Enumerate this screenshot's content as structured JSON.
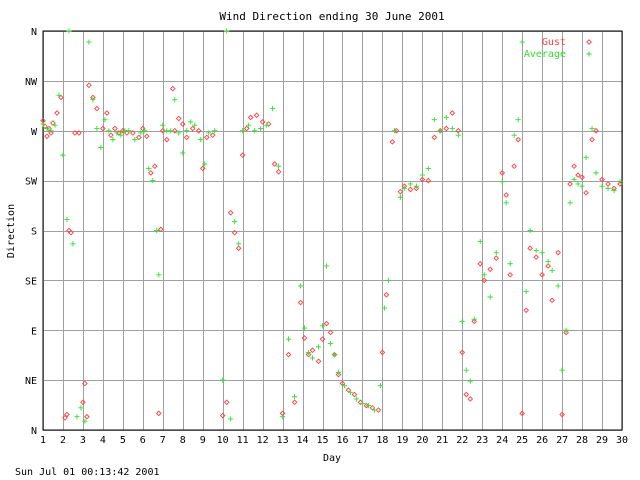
{
  "chart_data": {
    "type": "scatter",
    "title": "Wind Direction ending 30 June 2001",
    "xlabel": "Day",
    "ylabel": "Direction",
    "footer": "Sun Jul 01 00:13:42 2001",
    "x_range": [
      1,
      30
    ],
    "y_range": [
      0,
      360
    ],
    "x_ticks": [
      "1",
      "2",
      "3",
      "4",
      "5",
      "6",
      "7",
      "8",
      "9",
      "10",
      "11",
      "12",
      "13",
      "14",
      "15",
      "16",
      "17",
      "18",
      "19",
      "20",
      "21",
      "22",
      "23",
      "24",
      "25",
      "26",
      "27",
      "28",
      "29",
      "30"
    ],
    "y_ticks": [
      {
        "label": "N",
        "value": 0
      },
      {
        "label": "NE",
        "value": 45
      },
      {
        "label": "E",
        "value": 90
      },
      {
        "label": "SE",
        "value": 135
      },
      {
        "label": "S",
        "value": 180
      },
      {
        "label": "SW",
        "value": 225
      },
      {
        "label": "W",
        "value": 270
      },
      {
        "label": "NW",
        "value": 315
      },
      {
        "label": "N",
        "value": 360
      }
    ],
    "grid": true,
    "legend_position": "top-right",
    "series": [
      {
        "name": "Gust",
        "marker": "diamond",
        "color": "#ff4040",
        "points": [
          [
            1.0,
            279
          ],
          [
            1.1,
            274
          ],
          [
            1.2,
            265
          ],
          [
            1.3,
            272
          ],
          [
            1.4,
            268
          ],
          [
            1.5,
            277
          ],
          [
            1.7,
            286
          ],
          [
            1.9,
            300
          ],
          [
            2.1,
            11
          ],
          [
            2.2,
            14
          ],
          [
            2.3,
            180
          ],
          [
            2.4,
            178
          ],
          [
            2.6,
            268
          ],
          [
            2.8,
            268
          ],
          [
            3.0,
            25
          ],
          [
            3.1,
            42
          ],
          [
            3.2,
            12
          ],
          [
            3.3,
            311
          ],
          [
            3.5,
            300
          ],
          [
            3.7,
            290
          ],
          [
            4.0,
            272
          ],
          [
            4.2,
            286
          ],
          [
            4.4,
            266
          ],
          [
            4.6,
            272
          ],
          [
            4.8,
            268
          ],
          [
            5.0,
            270
          ],
          [
            5.2,
            268
          ],
          [
            5.5,
            268
          ],
          [
            5.8,
            264
          ],
          [
            6.0,
            272
          ],
          [
            6.2,
            265
          ],
          [
            6.4,
            232
          ],
          [
            6.6,
            238
          ],
          [
            6.8,
            15
          ],
          [
            6.9,
            181
          ],
          [
            7.0,
            270
          ],
          [
            7.2,
            262
          ],
          [
            7.5,
            308
          ],
          [
            7.6,
            270
          ],
          [
            7.8,
            281
          ],
          [
            8.0,
            276
          ],
          [
            8.2,
            264
          ],
          [
            8.5,
            272
          ],
          [
            8.8,
            270
          ],
          [
            9.0,
            236
          ],
          [
            9.2,
            264
          ],
          [
            9.5,
            266
          ],
          [
            10.0,
            13
          ],
          [
            10.2,
            25
          ],
          [
            10.4,
            196
          ],
          [
            10.6,
            178
          ],
          [
            10.8,
            164
          ],
          [
            11.0,
            248
          ],
          [
            11.2,
            272
          ],
          [
            11.4,
            282
          ],
          [
            11.7,
            284
          ],
          [
            12.0,
            278
          ],
          [
            12.3,
            276
          ],
          [
            12.6,
            240
          ],
          [
            12.8,
            233
          ],
          [
            13.0,
            15
          ],
          [
            13.3,
            68
          ],
          [
            13.6,
            25
          ],
          [
            13.9,
            115
          ],
          [
            14.1,
            83
          ],
          [
            14.3,
            68
          ],
          [
            14.5,
            72
          ],
          [
            14.8,
            62
          ],
          [
            15.0,
            82
          ],
          [
            15.2,
            96
          ],
          [
            15.4,
            88
          ],
          [
            15.6,
            68
          ],
          [
            15.8,
            50
          ],
          [
            16.0,
            42
          ],
          [
            16.3,
            36
          ],
          [
            16.6,
            32
          ],
          [
            16.9,
            25
          ],
          [
            17.2,
            22
          ],
          [
            17.5,
            20
          ],
          [
            17.8,
            18
          ],
          [
            18.0,
            70
          ],
          [
            18.2,
            122
          ],
          [
            18.5,
            260
          ],
          [
            18.7,
            270
          ],
          [
            18.9,
            215
          ],
          [
            19.1,
            220
          ],
          [
            19.4,
            217
          ],
          [
            19.7,
            218
          ],
          [
            20.0,
            226
          ],
          [
            20.3,
            225
          ],
          [
            20.6,
            264
          ],
          [
            20.9,
            270
          ],
          [
            21.2,
            272
          ],
          [
            21.5,
            286
          ],
          [
            21.8,
            270
          ],
          [
            22.0,
            70
          ],
          [
            22.2,
            32
          ],
          [
            22.4,
            28
          ],
          [
            22.6,
            98
          ],
          [
            22.9,
            150
          ],
          [
            23.1,
            135
          ],
          [
            23.4,
            145
          ],
          [
            23.7,
            155
          ],
          [
            24.0,
            232
          ],
          [
            24.2,
            212
          ],
          [
            24.4,
            140
          ],
          [
            24.6,
            238
          ],
          [
            24.8,
            262
          ],
          [
            25.0,
            15
          ],
          [
            25.2,
            108
          ],
          [
            25.4,
            164
          ],
          [
            25.7,
            156
          ],
          [
            26.0,
            140
          ],
          [
            26.3,
            148
          ],
          [
            26.5,
            117
          ],
          [
            26.8,
            160
          ],
          [
            27.0,
            14
          ],
          [
            27.2,
            88
          ],
          [
            27.4,
            222
          ],
          [
            27.6,
            238
          ],
          [
            27.8,
            230
          ],
          [
            28.0,
            228
          ],
          [
            28.2,
            214
          ],
          [
            28.5,
            262
          ],
          [
            28.7,
            270
          ],
          [
            29.0,
            226
          ],
          [
            29.3,
            222
          ],
          [
            29.6,
            218
          ],
          [
            29.9,
            222
          ]
        ]
      },
      {
        "name": "Average",
        "marker": "plus",
        "color": "#30e030",
        "points": [
          [
            1.0,
            276
          ],
          [
            1.2,
            272
          ],
          [
            1.4,
            270
          ],
          [
            1.6,
            275
          ],
          [
            1.8,
            302
          ],
          [
            2.0,
            248
          ],
          [
            2.2,
            190
          ],
          [
            2.3,
            360
          ],
          [
            2.5,
            168
          ],
          [
            2.7,
            12
          ],
          [
            2.9,
            20
          ],
          [
            3.1,
            8
          ],
          [
            3.3,
            350
          ],
          [
            3.5,
            298
          ],
          [
            3.7,
            272
          ],
          [
            3.9,
            255
          ],
          [
            4.1,
            280
          ],
          [
            4.3,
            270
          ],
          [
            4.5,
            262
          ],
          [
            4.7,
            268
          ],
          [
            4.9,
            266
          ],
          [
            5.1,
            270
          ],
          [
            5.3,
            270
          ],
          [
            5.6,
            262
          ],
          [
            5.9,
            268
          ],
          [
            6.1,
            270
          ],
          [
            6.3,
            236
          ],
          [
            6.5,
            225
          ],
          [
            6.7,
            180
          ],
          [
            6.8,
            140
          ],
          [
            7.0,
            275
          ],
          [
            7.2,
            270
          ],
          [
            7.4,
            270
          ],
          [
            7.6,
            298
          ],
          [
            7.8,
            268
          ],
          [
            8.0,
            250
          ],
          [
            8.2,
            270
          ],
          [
            8.4,
            278
          ],
          [
            8.6,
            275
          ],
          [
            8.9,
            262
          ],
          [
            9.1,
            240
          ],
          [
            9.3,
            268
          ],
          [
            9.6,
            270
          ],
          [
            10.0,
            45
          ],
          [
            10.2,
            360
          ],
          [
            10.4,
            10
          ],
          [
            10.6,
            188
          ],
          [
            10.8,
            168
          ],
          [
            11.0,
            270
          ],
          [
            11.3,
            275
          ],
          [
            11.6,
            270
          ],
          [
            11.9,
            272
          ],
          [
            12.2,
            275
          ],
          [
            12.5,
            290
          ],
          [
            12.8,
            238
          ],
          [
            13.0,
            12
          ],
          [
            13.3,
            82
          ],
          [
            13.6,
            30
          ],
          [
            13.9,
            130
          ],
          [
            14.1,
            92
          ],
          [
            14.3,
            70
          ],
          [
            14.5,
            65
          ],
          [
            14.8,
            75
          ],
          [
            15.0,
            94
          ],
          [
            15.2,
            148
          ],
          [
            15.4,
            78
          ],
          [
            15.6,
            68
          ],
          [
            15.8,
            52
          ],
          [
            16.1,
            40
          ],
          [
            16.4,
            34
          ],
          [
            16.7,
            28
          ],
          [
            17.0,
            24
          ],
          [
            17.3,
            22
          ],
          [
            17.6,
            18
          ],
          [
            17.9,
            40
          ],
          [
            18.1,
            110
          ],
          [
            18.3,
            135
          ],
          [
            18.6,
            270
          ],
          [
            18.9,
            210
          ],
          [
            19.1,
            218
          ],
          [
            19.4,
            222
          ],
          [
            19.7,
            220
          ],
          [
            20.0,
            230
          ],
          [
            20.3,
            236
          ],
          [
            20.6,
            280
          ],
          [
            20.9,
            270
          ],
          [
            21.2,
            282
          ],
          [
            21.5,
            272
          ],
          [
            21.8,
            266
          ],
          [
            22.0,
            98
          ],
          [
            22.2,
            54
          ],
          [
            22.4,
            44
          ],
          [
            22.6,
            100
          ],
          [
            22.9,
            170
          ],
          [
            23.1,
            140
          ],
          [
            23.4,
            120
          ],
          [
            23.7,
            160
          ],
          [
            24.0,
            224
          ],
          [
            24.2,
            205
          ],
          [
            24.4,
            150
          ],
          [
            24.6,
            266
          ],
          [
            24.8,
            280
          ],
          [
            25.0,
            350
          ],
          [
            25.2,
            125
          ],
          [
            25.4,
            180
          ],
          [
            25.7,
            162
          ],
          [
            26.0,
            160
          ],
          [
            26.3,
            152
          ],
          [
            26.5,
            144
          ],
          [
            26.8,
            130
          ],
          [
            27.0,
            54
          ],
          [
            27.2,
            90
          ],
          [
            27.4,
            205
          ],
          [
            27.6,
            226
          ],
          [
            27.8,
            222
          ],
          [
            28.0,
            220
          ],
          [
            28.2,
            246
          ],
          [
            28.5,
            272
          ],
          [
            28.7,
            232
          ],
          [
            29.0,
            220
          ],
          [
            29.3,
            218
          ],
          [
            29.6,
            216
          ],
          [
            29.9,
            224
          ]
        ]
      }
    ]
  }
}
